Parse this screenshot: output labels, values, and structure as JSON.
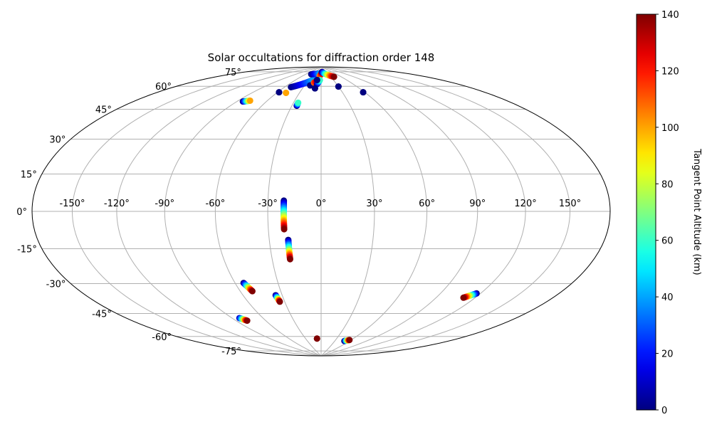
{
  "chart_data": {
    "type": "scatter",
    "projection": "hammer",
    "title": "Solar occultations for diffraction order 148",
    "lon_ticks": [
      -150,
      -120,
      -90,
      -60,
      -30,
      0,
      30,
      60,
      90,
      120,
      150
    ],
    "lat_ticks": [
      -75,
      -60,
      -45,
      -30,
      -15,
      0,
      15,
      30,
      45,
      60,
      75
    ],
    "lon_tick_labels": [
      "-150°",
      "-120°",
      "-90°",
      "-60°",
      "-30°",
      "0°",
      "30°",
      "60°",
      "90°",
      "120°",
      "150°"
    ],
    "lat_tick_labels": [
      "-75°",
      "-60°",
      "-45°",
      "-30°",
      "-15°",
      "0°",
      "15°",
      "30°",
      "45°",
      "60°",
      "75°"
    ],
    "grid": true,
    "colorbar": {
      "label": "Tangent Point Altitude (km)",
      "colormap": "jet",
      "vmin": 0,
      "vmax": 140,
      "ticks": [
        0,
        20,
        40,
        60,
        80,
        100,
        120,
        140
      ]
    },
    "tracks": [
      {
        "lon_start": -21,
        "lat_start": 6,
        "lon_end": -21,
        "lat_end": -10,
        "alt_start": 0,
        "alt_end": 140
      },
      {
        "lon_start": -19,
        "lat_start": -16,
        "lon_end": -19,
        "lat_end": -27,
        "alt_start": 0,
        "alt_end": 140
      },
      {
        "lon_start": -54,
        "lat_start": -40,
        "lon_end": -51,
        "lat_end": -45,
        "alt_start": 0,
        "alt_end": 140
      },
      {
        "lon_start": -35,
        "lat_start": -48,
        "lon_end": -34,
        "lat_end": -52,
        "alt_start": 0,
        "alt_end": 140
      },
      {
        "lon_start": -83,
        "lat_start": -60,
        "lon_end": -79,
        "lat_end": -62,
        "alt_start": 10,
        "alt_end": 140
      },
      {
        "lon_start": -8,
        "lat_start": -77,
        "lon_end": -8,
        "lat_end": -77,
        "alt_start": 140,
        "alt_end": 140
      },
      {
        "lon_start": 50,
        "lat_start": -78,
        "lon_end": 57,
        "lat_end": -77,
        "alt_start": 0,
        "alt_end": 140
      },
      {
        "lon_start": 117,
        "lat_start": -42,
        "lon_end": 111,
        "lat_end": -45,
        "alt_start": 0,
        "alt_end": 140
      },
      {
        "lon_start": -84,
        "lat_start": 62,
        "lon_end": -78,
        "lat_end": 63,
        "alt_start": 0,
        "alt_end": 100
      },
      {
        "lon_start": -58,
        "lat_start": 70,
        "lon_end": -58,
        "lat_end": 70,
        "alt_start": 0,
        "alt_end": 0
      },
      {
        "lon_start": -48,
        "lat_start": 70,
        "lon_end": -48,
        "lat_end": 70,
        "alt_start": 100,
        "alt_end": 100
      },
      {
        "lon_start": -25,
        "lat_start": 62,
        "lon_end": -25,
        "lat_end": 64,
        "alt_start": 0,
        "alt_end": 60
      },
      {
        "lon_start": -50,
        "lat_start": 74,
        "lon_end": -20,
        "lat_end": 80,
        "alt_start": 0,
        "alt_end": 40
      },
      {
        "lon_start": -40,
        "lat_start": 84,
        "lon_end": -5,
        "lat_end": 85,
        "alt_start": 0,
        "alt_end": 40
      },
      {
        "lon_start": -20,
        "lat_start": 76,
        "lon_end": -20,
        "lat_end": 76,
        "alt_start": 0,
        "alt_end": 0
      },
      {
        "lon_start": -15,
        "lat_start": 78,
        "lon_end": -8,
        "lat_end": 80,
        "alt_start": 110,
        "alt_end": 140
      },
      {
        "lon_start": -5,
        "lat_start": 83,
        "lon_end": 5,
        "lat_end": 86,
        "alt_start": 100,
        "alt_end": 140
      },
      {
        "lon_start": -8,
        "lat_start": 77,
        "lon_end": -3,
        "lat_end": 80,
        "alt_start": 0,
        "alt_end": 60
      },
      {
        "lon_start": -10,
        "lat_start": 74,
        "lon_end": -10,
        "lat_end": 74,
        "alt_start": 0,
        "alt_end": 0
      },
      {
        "lon_start": -10,
        "lat_start": 80,
        "lon_end": -10,
        "lat_end": 80,
        "alt_start": 0,
        "alt_end": 0
      },
      {
        "lon_start": 5,
        "lat_start": 86,
        "lon_end": 40,
        "lat_end": 82,
        "alt_start": 0,
        "alt_end": 140
      },
      {
        "lon_start": 30,
        "lat_start": 75,
        "lon_end": 30,
        "lat_end": 75,
        "alt_start": 0,
        "alt_end": 0
      },
      {
        "lon_start": 58,
        "lat_start": 70,
        "lon_end": 58,
        "lat_end": 70,
        "alt_start": 0,
        "alt_end": 0
      }
    ]
  }
}
